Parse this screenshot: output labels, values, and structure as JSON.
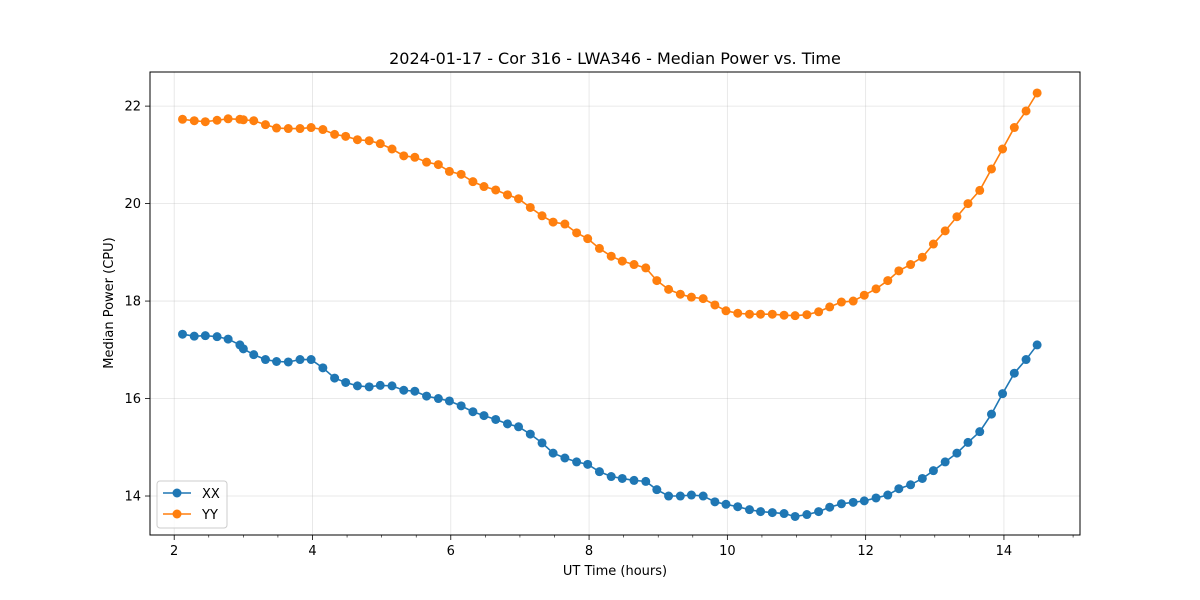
{
  "chart_data": {
    "type": "line",
    "title": "2024-01-17 - Cor 316 - LWA346 - Median Power vs. Time",
    "xlabel": "UT Time (hours)",
    "ylabel": "Median Power (CPU)",
    "xlim": [
      1.65,
      15.1
    ],
    "ylim": [
      13.2,
      22.7
    ],
    "xticks": [
      2,
      4,
      6,
      8,
      10,
      12,
      14
    ],
    "xtick_labels": [
      "2",
      "4",
      "6",
      "8",
      "10",
      "12",
      "14"
    ],
    "yticks": [
      14,
      16,
      18,
      20,
      22
    ],
    "ytick_labels": [
      "14",
      "16",
      "18",
      "20",
      "22"
    ],
    "grid": true,
    "legend_position": "lower-left",
    "x": [
      2.12,
      2.29,
      2.45,
      2.62,
      2.78,
      2.95,
      3.0,
      3.15,
      3.32,
      3.48,
      3.65,
      3.82,
      3.98,
      4.15,
      4.32,
      4.48,
      4.65,
      4.82,
      4.98,
      5.15,
      5.32,
      5.48,
      5.65,
      5.82,
      5.98,
      6.15,
      6.32,
      6.48,
      6.65,
      6.82,
      6.98,
      7.15,
      7.32,
      7.48,
      7.65,
      7.82,
      7.98,
      8.15,
      8.32,
      8.48,
      8.65,
      8.82,
      8.98,
      9.15,
      9.32,
      9.48,
      9.65,
      9.82,
      9.98,
      10.15,
      10.32,
      10.48,
      10.65,
      10.82,
      10.98,
      11.15,
      11.32,
      11.48,
      11.65,
      11.82,
      11.98,
      12.15,
      12.32,
      12.48,
      12.65,
      12.82,
      12.98,
      13.15,
      13.32,
      13.48,
      13.65,
      13.82,
      13.98,
      14.15,
      14.32,
      14.48
    ],
    "series": [
      {
        "name": "XX",
        "color": "#1f77b4",
        "values": [
          17.32,
          17.28,
          17.29,
          17.27,
          17.22,
          17.1,
          17.02,
          16.9,
          16.8,
          16.76,
          16.75,
          16.8,
          16.8,
          16.63,
          16.42,
          16.33,
          16.26,
          16.24,
          16.27,
          16.26,
          16.17,
          16.15,
          16.05,
          16.0,
          15.95,
          15.85,
          15.73,
          15.65,
          15.57,
          15.48,
          15.42,
          15.27,
          15.09,
          14.88,
          14.78,
          14.7,
          14.65,
          14.5,
          14.4,
          14.36,
          14.32,
          14.3,
          14.13,
          14.0,
          14.0,
          14.02,
          14.0,
          13.88,
          13.83,
          13.78,
          13.72,
          13.68,
          13.66,
          13.64,
          13.58,
          13.62,
          13.68,
          13.77,
          13.84,
          13.87,
          13.9,
          13.96,
          14.02,
          14.15,
          14.23,
          14.36,
          14.52,
          14.7,
          14.88,
          15.1,
          15.32,
          15.68,
          16.1,
          16.52,
          16.8,
          17.1
        ]
      },
      {
        "name": "YY",
        "color": "#ff7f0e",
        "values": [
          21.73,
          21.7,
          21.68,
          21.71,
          21.74,
          21.73,
          21.72,
          21.7,
          21.62,
          21.55,
          21.54,
          21.54,
          21.56,
          21.52,
          21.42,
          21.38,
          21.31,
          21.29,
          21.23,
          21.12,
          20.98,
          20.95,
          20.85,
          20.8,
          20.66,
          20.6,
          20.45,
          20.35,
          20.28,
          20.18,
          20.1,
          19.92,
          19.75,
          19.62,
          19.58,
          19.4,
          19.28,
          19.08,
          18.92,
          18.82,
          18.75,
          18.68,
          18.42,
          18.24,
          18.14,
          18.08,
          18.05,
          17.92,
          17.8,
          17.75,
          17.73,
          17.73,
          17.73,
          17.71,
          17.7,
          17.72,
          17.78,
          17.88,
          17.98,
          18.0,
          18.12,
          18.25,
          18.42,
          18.62,
          18.75,
          18.9,
          19.17,
          19.44,
          19.73,
          20.0,
          20.27,
          20.71,
          21.12,
          21.56,
          21.9,
          22.27
        ]
      }
    ]
  }
}
